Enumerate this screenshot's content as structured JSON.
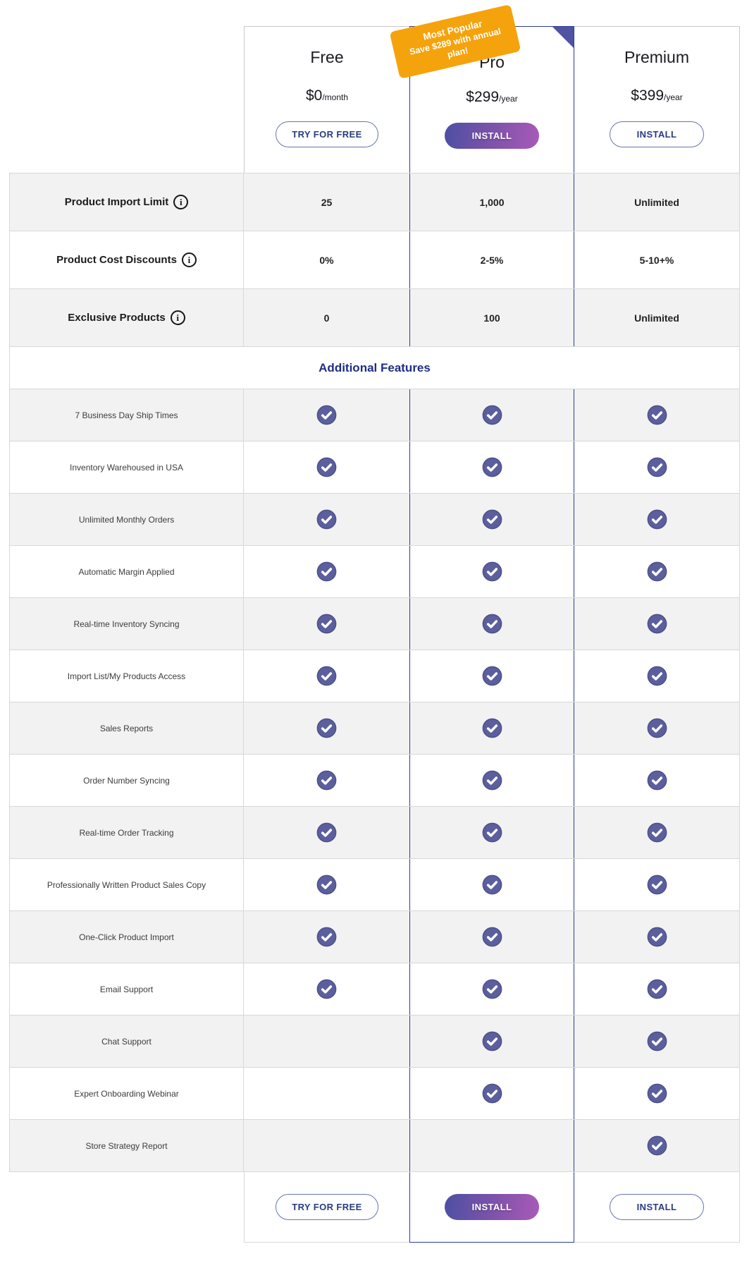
{
  "plans": [
    {
      "id": "free",
      "name": "Free",
      "price_main": "$0",
      "price_suffix": "/month",
      "button": "TRY FOR FREE",
      "button_style": "outline",
      "highlight": false
    },
    {
      "id": "pro",
      "name": "Pro",
      "price_main": "$299",
      "price_suffix": "/year",
      "button": "INSTALL",
      "button_style": "gradient",
      "highlight": true,
      "badge_line1": "Most Popular",
      "badge_line2": "Save $289 with annual plan!"
    },
    {
      "id": "premium",
      "name": "Premium",
      "price_main": "$399",
      "price_suffix": "/year",
      "button": "INSTALL",
      "button_style": "outline",
      "highlight": false
    }
  ],
  "spec_rows": [
    {
      "label": "Product Import Limit",
      "info": true,
      "values": [
        "25",
        "1,000",
        "Unlimited"
      ]
    },
    {
      "label": "Product Cost Discounts",
      "info": true,
      "values": [
        "0%",
        "2-5%",
        "5-10+%"
      ]
    },
    {
      "label": "Exclusive Products",
      "info": true,
      "values": [
        "0",
        "100",
        "Unlimited"
      ]
    }
  ],
  "section_header": "Additional Features",
  "feature_rows": [
    {
      "label": "7 Business Day Ship Times",
      "checks": [
        true,
        true,
        true
      ]
    },
    {
      "label": "Inventory Warehoused in USA",
      "checks": [
        true,
        true,
        true
      ]
    },
    {
      "label": "Unlimited Monthly Orders",
      "checks": [
        true,
        true,
        true
      ]
    },
    {
      "label": "Automatic Margin Applied",
      "checks": [
        true,
        true,
        true
      ]
    },
    {
      "label": "Real-time Inventory Syncing",
      "checks": [
        true,
        true,
        true
      ]
    },
    {
      "label": "Import List/My Products Access",
      "checks": [
        true,
        true,
        true
      ]
    },
    {
      "label": "Sales Reports",
      "checks": [
        true,
        true,
        true
      ]
    },
    {
      "label": "Order Number Syncing",
      "checks": [
        true,
        true,
        true
      ]
    },
    {
      "label": "Real-time Order Tracking",
      "checks": [
        true,
        true,
        true
      ]
    },
    {
      "label": "Professionally Written Product Sales Copy",
      "checks": [
        true,
        true,
        true
      ]
    },
    {
      "label": "One-Click Product Import",
      "checks": [
        true,
        true,
        true
      ]
    },
    {
      "label": "Email Support",
      "checks": [
        true,
        true,
        true
      ]
    },
    {
      "label": "Chat Support",
      "checks": [
        false,
        true,
        true
      ]
    },
    {
      "label": "Expert Onboarding Webinar",
      "checks": [
        false,
        true,
        true
      ]
    },
    {
      "label": "Store Strategy Report",
      "checks": [
        false,
        false,
        true
      ]
    }
  ],
  "icons": {
    "info_glyph": "i",
    "check": "check-mark"
  },
  "colors": {
    "accent_blue": "#2e3d92",
    "badge_orange": "#f5a30c",
    "check_fill": "#5b5f9e",
    "row_grey": "#f2f2f2",
    "section_navy": "#1f2e85",
    "button_navy": "#2b3a80"
  }
}
